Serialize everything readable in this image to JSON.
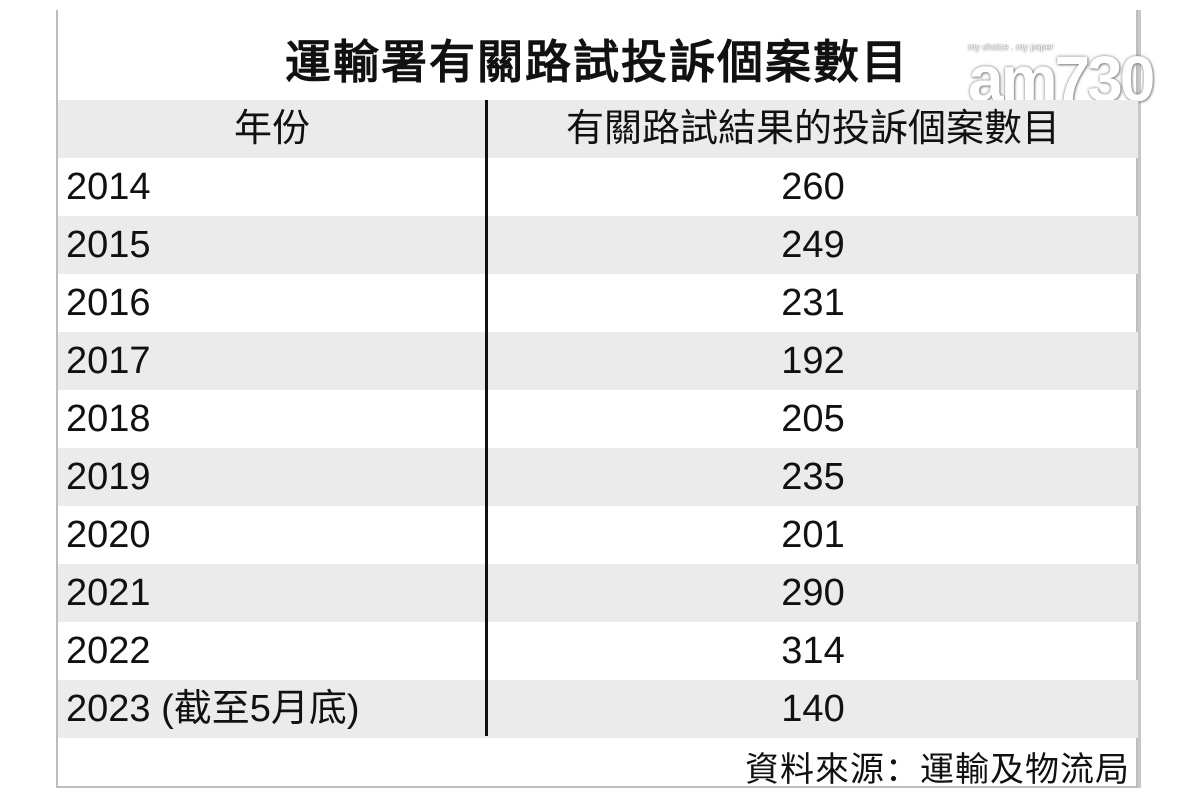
{
  "title": "運輸署有關路試投訴個案數目",
  "logo": {
    "tagline": "my choice . my paper",
    "mark": "am730"
  },
  "chart_data": {
    "type": "table",
    "title": "運輸署有關路試投訴個案數目",
    "columns": [
      "年份",
      "有關路試結果的投訴個案數目"
    ],
    "rows": [
      {
        "year": "2014",
        "value": "260"
      },
      {
        "year": "2015",
        "value": "249"
      },
      {
        "year": "2016",
        "value": "231"
      },
      {
        "year": "2017",
        "value": "192"
      },
      {
        "year": "2018",
        "value": "205"
      },
      {
        "year": "2019",
        "value": "235"
      },
      {
        "year": "2020",
        "value": "201"
      },
      {
        "year": "2021",
        "value": "290"
      },
      {
        "year": "2022",
        "value": "314"
      },
      {
        "year": "2023 (截至5月底)",
        "value": "140"
      }
    ]
  },
  "source": "資料來源：運輸及物流局",
  "colors": {
    "header_bg": "#ebebeb",
    "stripe_bg": "#ebebeb",
    "border": "#bdbdbd"
  }
}
